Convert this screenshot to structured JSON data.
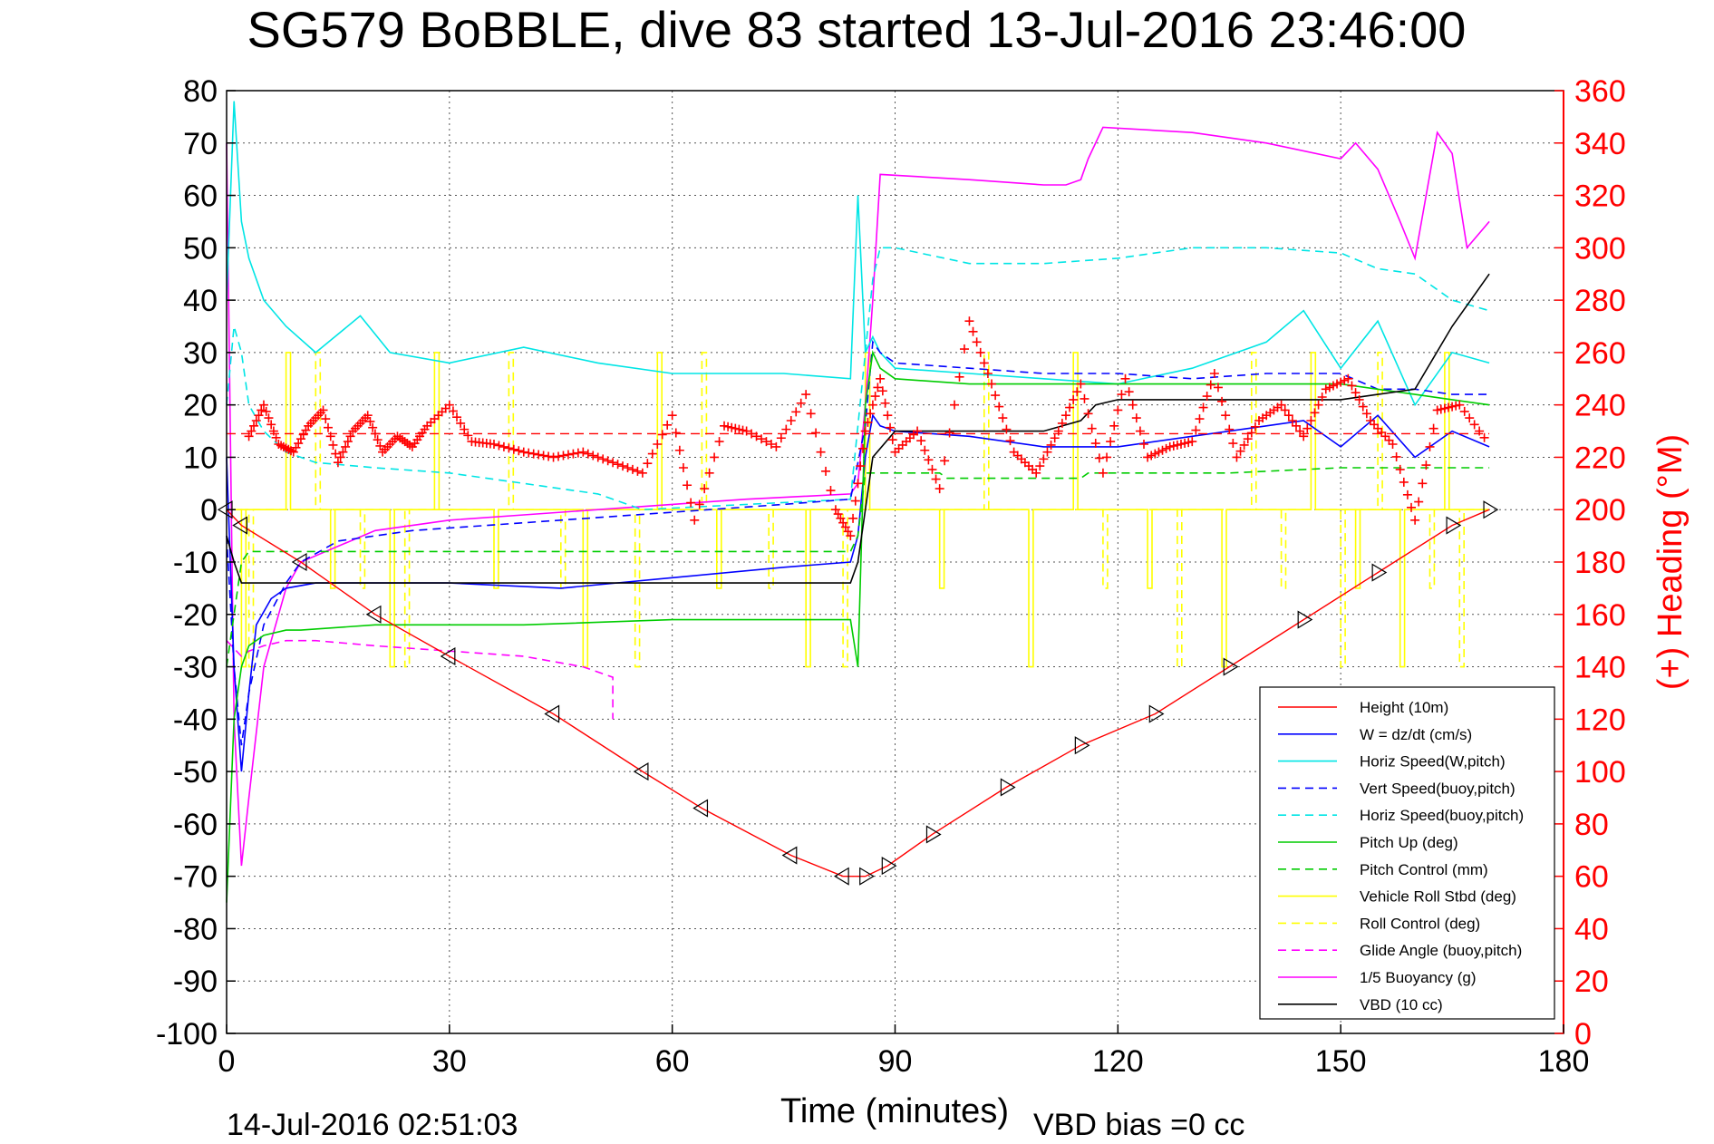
{
  "chart_data": {
    "type": "line",
    "title": "SG579 BoBBLE, dive 83 started 13-Jul-2016 23:46:00",
    "xlabel": "Time (minutes)",
    "ylabel_right": "(+) Heading (°M)",
    "footer_left": "14-Jul-2016 02:51:03",
    "footer_right": "VBD bias =0 cc",
    "xlim": [
      0,
      180
    ],
    "ylim": [
      -100,
      80
    ],
    "ylim_right": [
      0,
      360
    ],
    "x_ticks": [
      "0",
      "30",
      "60",
      "90",
      "120",
      "150",
      "180"
    ],
    "y_ticks": [
      "80",
      "70",
      "60",
      "50",
      "40",
      "30",
      "20",
      "10",
      "0",
      "-10",
      "-20",
      "-30",
      "-40",
      "-50",
      "-60",
      "-70",
      "-80",
      "-90",
      "-100"
    ],
    "y_right_ticks": [
      "360",
      "340",
      "320",
      "300",
      "280",
      "260",
      "240",
      "220",
      "200",
      "180",
      "160",
      "140",
      "120",
      "100",
      "80",
      "60",
      "40",
      "20",
      "0"
    ],
    "grid": true,
    "legend_position": "lower-right",
    "series": [
      {
        "name": "Height (10m)",
        "color": "#ff0000",
        "style": "solid",
        "x": [
          0,
          2,
          10,
          20,
          30,
          44,
          56,
          64,
          76,
          83,
          86,
          89,
          95,
          105,
          115,
          125,
          135,
          145,
          155,
          165,
          170
        ],
        "y": [
          0,
          -3,
          -10,
          -20,
          -28,
          -39,
          -50,
          -57,
          -66,
          -70,
          -70,
          -68,
          -62,
          -53,
          -45,
          -39,
          -30,
          -21,
          -12,
          -3,
          0
        ]
      },
      {
        "name": "W = dz/dt (cm/s)",
        "color": "#0000ff",
        "style": "solid",
        "x": [
          0,
          1,
          2,
          3,
          4,
          6,
          8,
          12,
          20,
          30,
          45,
          60,
          75,
          84,
          85,
          86,
          87,
          88,
          90,
          100,
          110,
          120,
          130,
          140,
          145,
          150,
          155,
          160,
          165,
          170
        ],
        "y": [
          10,
          -30,
          -50,
          -35,
          -22,
          -17,
          -15,
          -14,
          -14,
          -14,
          -15,
          -13,
          -11,
          -10,
          -5,
          10,
          18,
          16,
          15,
          14,
          12,
          12,
          14,
          16,
          17,
          12,
          18,
          10,
          15,
          12
        ]
      },
      {
        "name": "Horiz Speed(W,pitch)",
        "color": "#00e5e5",
        "style": "solid",
        "x": [
          0,
          1,
          2,
          3,
          5,
          8,
          12,
          18,
          22,
          30,
          40,
          50,
          60,
          75,
          84,
          85,
          86,
          87,
          88,
          90,
          100,
          110,
          120,
          130,
          140,
          145,
          150,
          155,
          160,
          165,
          170
        ],
        "y": [
          40,
          78,
          55,
          48,
          40,
          35,
          30,
          37,
          30,
          28,
          31,
          28,
          26,
          26,
          25,
          60,
          30,
          33,
          30,
          27,
          26,
          25,
          24,
          27,
          32,
          38,
          27,
          36,
          20,
          30,
          28
        ]
      },
      {
        "name": "Vert Speed(buoy,pitch)",
        "color": "#0000ff",
        "style": "dashed",
        "x": [
          0,
          1,
          2,
          3,
          5,
          8,
          10,
          15,
          25,
          35,
          45,
          55,
          65,
          75,
          84,
          86,
          87,
          88,
          90,
          100,
          110,
          120,
          130,
          140,
          150,
          155,
          160,
          165,
          170
        ],
        "y": [
          -5,
          -30,
          -45,
          -35,
          -22,
          -14,
          -10,
          -6,
          -4,
          -3,
          -2,
          -1,
          0,
          1,
          2,
          16,
          32,
          30,
          28,
          27,
          26,
          26,
          25,
          26,
          26,
          23,
          23,
          22,
          22
        ]
      },
      {
        "name": "Horiz Speed(buoy,pitch)",
        "color": "#00e5e5",
        "style": "dashed",
        "x": [
          0,
          1,
          2,
          3,
          5,
          8,
          12,
          20,
          30,
          40,
          50,
          56,
          84,
          86,
          87,
          88,
          90,
          100,
          110,
          120,
          130,
          140,
          150,
          155,
          160,
          165,
          170
        ],
        "y": [
          20,
          35,
          30,
          20,
          15,
          11,
          9,
          8,
          7,
          5,
          3,
          0,
          2,
          30,
          44,
          50,
          50,
          47,
          47,
          48,
          50,
          50,
          49,
          46,
          45,
          40,
          38
        ]
      },
      {
        "name": "Pitch Up (deg)",
        "color": "#00cc00",
        "style": "solid",
        "x": [
          0,
          1,
          2,
          3,
          5,
          8,
          10,
          20,
          40,
          60,
          84,
          85,
          86,
          87,
          88,
          90,
          100,
          110,
          120,
          130,
          140,
          150,
          160,
          165,
          170
        ],
        "y": [
          -75,
          -40,
          -30,
          -26,
          -24,
          -23,
          -23,
          -22,
          -22,
          -21,
          -21,
          -30,
          20,
          30,
          27,
          25,
          24,
          24,
          24,
          24,
          24,
          24,
          22,
          21,
          20
        ]
      },
      {
        "name": "Pitch Control (mm)",
        "color": "#00cc00",
        "style": "dashed",
        "x": [
          0,
          2,
          3,
          84,
          85,
          86,
          96,
          97,
          115,
          116,
          135,
          150,
          160,
          170
        ],
        "y": [
          -30,
          -10,
          -8,
          -8,
          -5,
          7,
          7,
          6,
          6,
          7,
          7,
          8,
          8,
          8
        ]
      },
      {
        "name": "Vehicle Roll Stbd (deg)",
        "color": "#ffff00",
        "style": "solid",
        "x": [
          0,
          30,
          60,
          90,
          120,
          150,
          170
        ],
        "y": [
          0,
          0,
          0,
          0,
          0,
          0,
          0
        ]
      },
      {
        "name": "Roll Control (deg)",
        "color": "#ffff00",
        "style": "dashed",
        "x": [
          0,
          30,
          60,
          90,
          120,
          150,
          170
        ],
        "y": [
          0,
          0,
          0,
          0,
          0,
          0,
          0
        ]
      },
      {
        "name": "Glide Angle (buoy,pitch)",
        "color": "#ff00ff",
        "style": "dashed",
        "x": [
          0,
          2,
          3,
          5,
          8,
          12,
          20,
          30,
          40,
          48,
          52,
          52
        ],
        "y": [
          -25,
          -28,
          -27,
          -26,
          -25,
          -25,
          -26,
          -27,
          -28,
          -30,
          -32,
          -40
        ]
      },
      {
        "name": "1/5 Buoyancy (g)",
        "color": "#ff00ff",
        "style": "solid",
        "x": [
          0,
          1,
          2,
          3,
          5,
          8,
          10,
          20,
          30,
          40,
          50,
          60,
          70,
          84,
          85,
          86,
          87,
          88,
          100,
          110,
          113,
          115,
          116,
          118,
          130,
          140,
          150,
          152,
          155,
          158,
          160,
          163,
          165,
          167,
          170
        ],
        "y": [
          70,
          -40,
          -68,
          -55,
          -30,
          -15,
          -10,
          -4,
          -2,
          -1,
          0,
          1,
          2,
          3,
          5,
          20,
          40,
          64,
          63,
          62,
          62,
          63,
          67,
          73,
          72,
          70,
          67,
          70,
          65,
          55,
          48,
          72,
          68,
          50,
          55
        ]
      },
      {
        "name": "VBD (10 cc)",
        "color": "#000000",
        "style": "solid",
        "x": [
          0,
          1,
          2,
          84,
          85,
          87,
          90,
          100,
          110,
          115,
          117,
          120,
          150,
          155,
          160,
          165,
          170
        ],
        "y": [
          -5,
          -10,
          -14,
          -14,
          -10,
          10,
          15,
          15,
          15,
          17,
          20,
          21,
          21,
          22,
          23,
          35,
          45
        ]
      }
    ],
    "heading_series": {
      "name": "Heading",
      "color": "#ff0000",
      "marker": "+",
      "x": [
        3,
        5,
        7,
        9,
        11,
        13,
        15,
        17,
        19,
        21,
        23,
        25,
        27,
        30,
        33,
        36,
        40,
        44,
        48,
        52,
        56,
        60,
        63,
        67,
        70,
        74,
        78,
        82,
        84,
        86,
        88,
        90,
        93,
        96,
        100,
        103,
        106,
        109,
        112,
        115,
        118,
        121,
        124,
        127,
        130,
        133,
        136,
        139,
        142,
        145,
        148,
        151,
        154,
        157,
        160,
        163,
        166,
        170
      ],
      "y": [
        228,
        240,
        225,
        222,
        232,
        238,
        218,
        230,
        236,
        222,
        228,
        224,
        232,
        240,
        226,
        225,
        222,
        220,
        222,
        218,
        214,
        236,
        196,
        232,
        230,
        224,
        244,
        200,
        190,
        230,
        250,
        222,
        230,
        208,
        272,
        248,
        222,
        214,
        230,
        248,
        214,
        250,
        220,
        224,
        226,
        252,
        220,
        234,
        240,
        228,
        246,
        250,
        234,
        225,
        196,
        238,
        240,
        225
      ]
    },
    "heading_reference": 229
  }
}
